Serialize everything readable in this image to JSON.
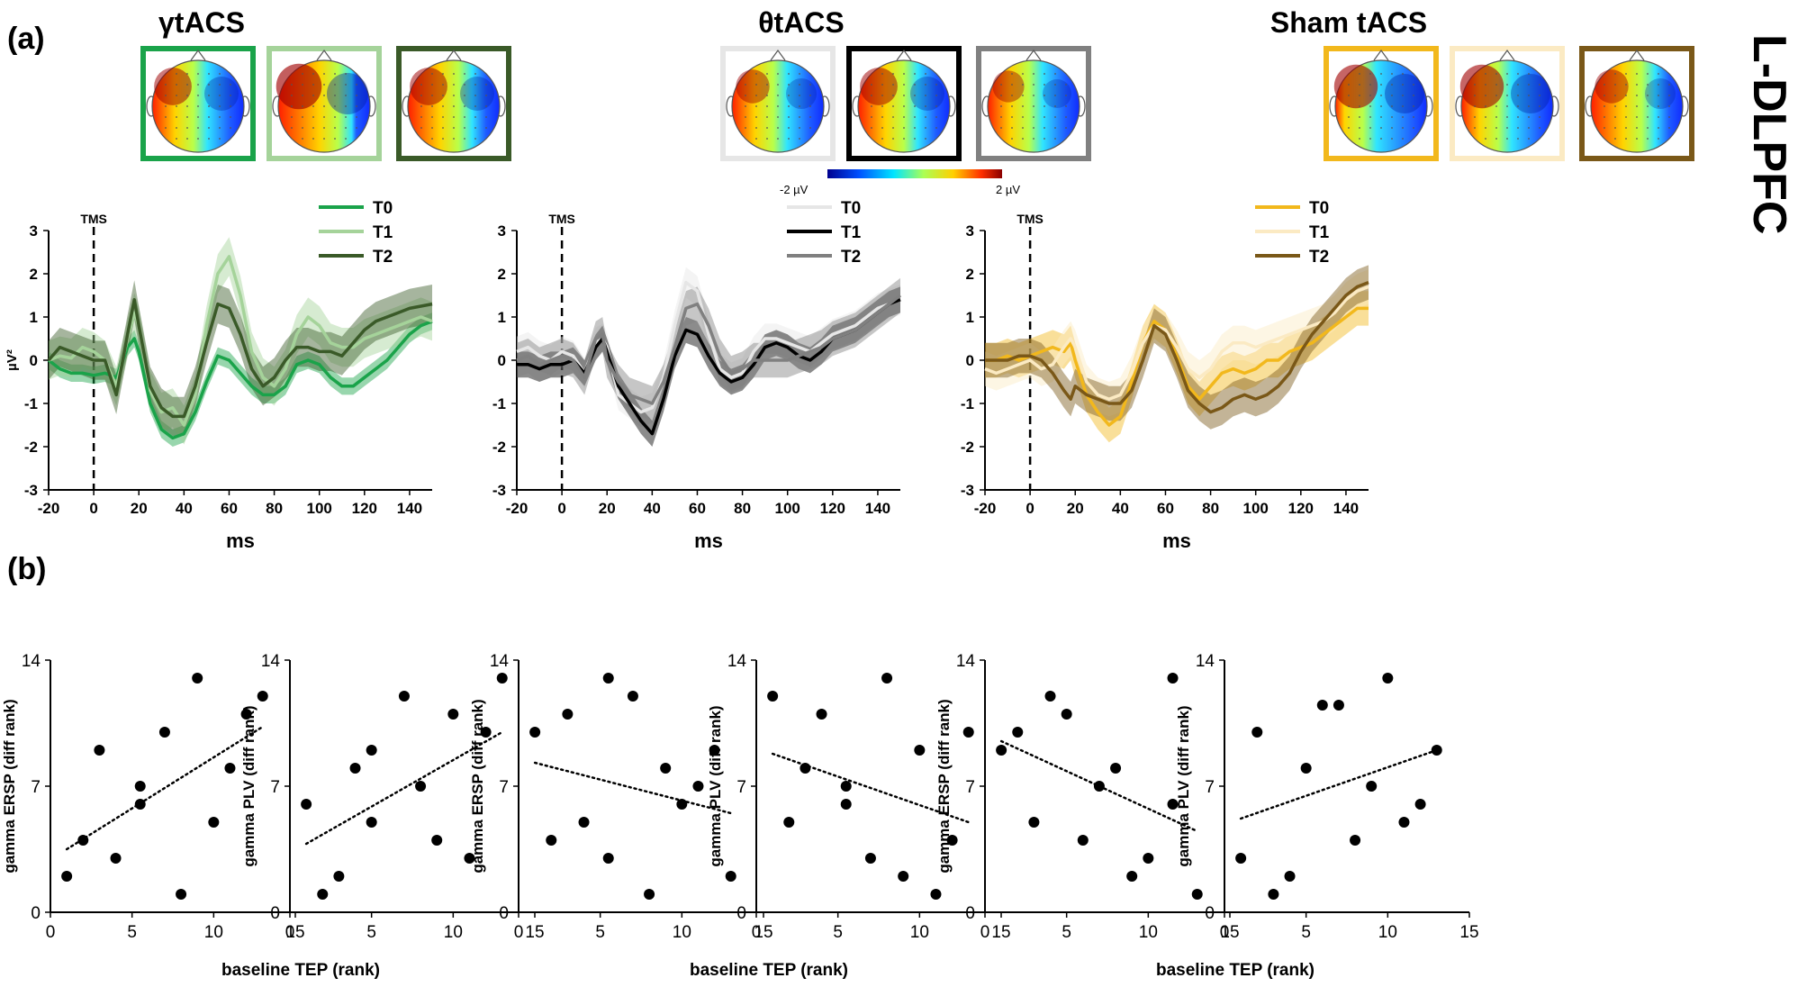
{
  "figure": {
    "panel_a_label": "(a)",
    "panel_b_label": "(b)",
    "side_label": "L-DLPFC",
    "colorbar": {
      "min_label": "-2 µV",
      "max_label": "2 µV"
    }
  },
  "colors": {
    "gamma": [
      "#1aa34a",
      "#a5d39a",
      "#3a5a28"
    ],
    "theta": [
      "#e6e6e6",
      "#000000",
      "#808080"
    ],
    "sham": [
      "#f2b81c",
      "#fbeac3",
      "#7a5818"
    ]
  },
  "chart_data": [
    {
      "type": "line",
      "title": "γtACS",
      "xlabel": "ms",
      "ylabel": "µV²",
      "xlim": [
        -20,
        150
      ],
      "ylim": [
        -3,
        3
      ],
      "xticks": [
        "-20",
        "0",
        "20",
        "40",
        "60",
        "80",
        "100",
        "120",
        "140"
      ],
      "yticks": [
        "-3",
        "-2",
        "-1",
        "0",
        "1",
        "2",
        "3"
      ],
      "marker_label": "TMS",
      "marker_x": 0,
      "legend": [
        "T0",
        "T1",
        "T2"
      ],
      "x": [
        -20,
        -15,
        -10,
        -5,
        0,
        5,
        10,
        15,
        18,
        20,
        25,
        30,
        35,
        40,
        45,
        50,
        55,
        60,
        65,
        70,
        75,
        80,
        85,
        90,
        95,
        100,
        105,
        110,
        115,
        120,
        125,
        130,
        135,
        140,
        145,
        150
      ],
      "series": [
        {
          "name": "T0",
          "values": [
            0,
            -0.2,
            -0.3,
            -0.3,
            -0.35,
            -0.3,
            -0.4,
            0.3,
            0.5,
            0.2,
            -1.0,
            -1.6,
            -1.8,
            -1.7,
            -1.2,
            -0.5,
            0.1,
            0.0,
            -0.3,
            -0.6,
            -0.8,
            -0.8,
            -0.6,
            -0.1,
            0.0,
            -0.1,
            -0.4,
            -0.6,
            -0.6,
            -0.4,
            -0.2,
            0.0,
            0.3,
            0.6,
            0.8,
            0.9
          ],
          "band": 0.2
        },
        {
          "name": "T1",
          "values": [
            0,
            0.1,
            0.05,
            0.3,
            0.2,
            0.0,
            -0.6,
            0.5,
            1.1,
            0.8,
            -0.7,
            -1.2,
            -1.1,
            -1.5,
            -0.8,
            0.8,
            2.0,
            2.4,
            1.5,
            0.2,
            -0.4,
            -0.6,
            -0.2,
            0.6,
            1.0,
            0.8,
            0.4,
            0.3,
            0.3,
            0.5,
            0.6,
            0.7,
            0.8,
            0.9,
            1.0,
            0.9
          ],
          "band": 0.45
        },
        {
          "name": "T2",
          "values": [
            0,
            0.3,
            0.2,
            0.1,
            0.0,
            0.0,
            -0.8,
            0.6,
            1.4,
            0.8,
            -0.6,
            -1.1,
            -1.3,
            -1.3,
            -0.6,
            0.4,
            1.3,
            1.2,
            0.6,
            -0.2,
            -0.6,
            -0.4,
            0.0,
            0.3,
            0.3,
            0.2,
            0.2,
            0.1,
            0.4,
            0.7,
            0.9,
            1.0,
            1.1,
            1.2,
            1.25,
            1.3
          ],
          "band": 0.45
        }
      ]
    },
    {
      "type": "line",
      "title": "θtACS",
      "xlabel": "ms",
      "ylabel": "",
      "xlim": [
        -20,
        150
      ],
      "ylim": [
        -3,
        3
      ],
      "xticks": [
        "-20",
        "0",
        "20",
        "40",
        "60",
        "80",
        "100",
        "120",
        "140"
      ],
      "yticks": [
        "-3",
        "-2",
        "-1",
        "0",
        "1",
        "2",
        "3"
      ],
      "marker_label": "TMS",
      "marker_x": 0,
      "legend": [
        "T0",
        "T1",
        "T2"
      ],
      "x": [
        -20,
        -15,
        -10,
        -5,
        0,
        5,
        10,
        15,
        18,
        20,
        25,
        30,
        35,
        40,
        45,
        50,
        55,
        60,
        65,
        70,
        75,
        80,
        85,
        90,
        95,
        100,
        105,
        110,
        115,
        120,
        125,
        130,
        135,
        140,
        145,
        150
      ],
      "series": [
        {
          "name": "T0",
          "values": [
            0.2,
            0.3,
            0.1,
            0.0,
            0.2,
            0.1,
            -0.3,
            0.4,
            0.5,
            0.3,
            -0.8,
            -1.0,
            -1.2,
            -1.1,
            -0.4,
            0.8,
            1.8,
            1.6,
            0.6,
            -0.2,
            -0.4,
            -0.3,
            0.2,
            0.5,
            0.5,
            0.4,
            0.3,
            0.2,
            0.4,
            0.6,
            0.7,
            0.8,
            1.0,
            1.2,
            1.3,
            1.4
          ],
          "band": 0.35
        },
        {
          "name": "T1",
          "values": [
            -0.1,
            -0.1,
            -0.2,
            -0.1,
            -0.1,
            0.0,
            -0.3,
            0.3,
            0.5,
            0.2,
            -0.6,
            -1.0,
            -1.4,
            -1.7,
            -0.9,
            0.1,
            0.7,
            0.6,
            0.1,
            -0.3,
            -0.5,
            -0.4,
            -0.1,
            0.3,
            0.4,
            0.3,
            0.1,
            0.0,
            0.2,
            0.5,
            0.6,
            0.7,
            0.9,
            1.1,
            1.3,
            1.4
          ],
          "band": 0.3
        },
        {
          "name": "T2",
          "values": [
            0.0,
            0.1,
            -0.1,
            0.0,
            0.1,
            0.0,
            -0.4,
            0.5,
            0.6,
            0.0,
            -0.5,
            -0.8,
            -0.9,
            -1.0,
            -0.5,
            0.3,
            1.2,
            1.3,
            0.8,
            0.1,
            -0.3,
            -0.2,
            0.0,
            0.0,
            0.0,
            0.0,
            0.1,
            0.2,
            0.3,
            0.5,
            0.6,
            0.7,
            0.9,
            1.1,
            1.3,
            1.5
          ],
          "band": 0.4
        }
      ]
    },
    {
      "type": "line",
      "title": "Sham tACS",
      "xlabel": "ms",
      "ylabel": "",
      "xlim": [
        -20,
        150
      ],
      "ylim": [
        -3,
        3
      ],
      "xticks": [
        "-20",
        "0",
        "20",
        "40",
        "60",
        "80",
        "100",
        "120",
        "140"
      ],
      "yticks": [
        "-3",
        "-2",
        "-1",
        "0",
        "1",
        "2",
        "3"
      ],
      "marker_label": "TMS",
      "marker_x": 0,
      "legend": [
        "T0",
        "T1",
        "T2"
      ],
      "x": [
        -20,
        -15,
        -10,
        -5,
        0,
        5,
        10,
        15,
        18,
        20,
        25,
        30,
        35,
        40,
        45,
        50,
        55,
        60,
        65,
        70,
        75,
        80,
        85,
        90,
        95,
        100,
        105,
        110,
        115,
        120,
        125,
        130,
        135,
        140,
        145,
        150
      ],
      "series": [
        {
          "name": "T0",
          "values": [
            0.0,
            0.0,
            0.1,
            0.0,
            0.1,
            0.2,
            0.3,
            0.2,
            0.4,
            0.0,
            -0.8,
            -1.2,
            -1.5,
            -1.3,
            -0.5,
            0.4,
            0.9,
            0.7,
            0.1,
            -0.6,
            -0.9,
            -0.6,
            -0.3,
            -0.2,
            -0.3,
            -0.2,
            0.0,
            0.0,
            0.2,
            0.3,
            0.4,
            0.6,
            0.8,
            1.0,
            1.2,
            1.2
          ],
          "band": 0.4
        },
        {
          "name": "T1",
          "values": [
            -0.2,
            -0.3,
            -0.2,
            -0.1,
            0.0,
            -0.2,
            -0.1,
            0.3,
            0.5,
            0.3,
            -0.5,
            -0.8,
            -0.9,
            -0.8,
            -0.3,
            0.4,
            0.8,
            0.7,
            0.3,
            -0.2,
            -0.4,
            -0.2,
            0.2,
            0.4,
            0.4,
            0.3,
            0.4,
            0.5,
            0.6,
            0.7,
            0.8,
            0.9,
            1.1,
            1.4,
            1.6,
            1.7
          ],
          "band": 0.4
        },
        {
          "name": "T2",
          "values": [
            0.0,
            0.0,
            0.0,
            0.1,
            0.1,
            0.0,
            -0.3,
            -0.7,
            -0.9,
            -0.6,
            -0.8,
            -0.9,
            -1.0,
            -1.0,
            -0.7,
            0.0,
            0.8,
            0.6,
            0.0,
            -0.7,
            -1.0,
            -1.2,
            -1.1,
            -0.9,
            -0.8,
            -0.9,
            -0.8,
            -0.6,
            -0.3,
            0.2,
            0.6,
            0.9,
            1.2,
            1.5,
            1.7,
            1.8
          ],
          "band": 0.4
        }
      ]
    },
    {
      "type": "scatter",
      "ylabel": "gamma ERSP (diff rank)",
      "xlabel": "baseline TEP (rank)",
      "xlim": [
        0,
        15
      ],
      "ylim": [
        0,
        14
      ],
      "xticks": [
        "0",
        "5",
        "10",
        "15"
      ],
      "yticks": [
        "0",
        "7",
        "14"
      ],
      "trend": [
        [
          1,
          3.5
        ],
        [
          13,
          10.3
        ]
      ],
      "points": [
        [
          1,
          2
        ],
        [
          2,
          4
        ],
        [
          3,
          9
        ],
        [
          4,
          3
        ],
        [
          5.5,
          7
        ],
        [
          5.5,
          6
        ],
        [
          7,
          10
        ],
        [
          8,
          1
        ],
        [
          9,
          13
        ],
        [
          10,
          5
        ],
        [
          11,
          8
        ],
        [
          12,
          11
        ],
        [
          13,
          12
        ]
      ]
    },
    {
      "type": "scatter",
      "ylabel": "gamma PLV (diff rank)",
      "xlabel": "",
      "xlim": [
        0,
        15
      ],
      "ylim": [
        0,
        14
      ],
      "xticks": [
        "0",
        "5",
        "10",
        "15"
      ],
      "yticks": [
        "0",
        "7",
        "14"
      ],
      "trend": [
        [
          1,
          3.8
        ],
        [
          13,
          10.0
        ]
      ],
      "points": [
        [
          1,
          6
        ],
        [
          2,
          1
        ],
        [
          3,
          2
        ],
        [
          4,
          8
        ],
        [
          5,
          5
        ],
        [
          5,
          9
        ],
        [
          7,
          12
        ],
        [
          8,
          7
        ],
        [
          9,
          4
        ],
        [
          10,
          11
        ],
        [
          11,
          3
        ],
        [
          12,
          10
        ],
        [
          13,
          13
        ]
      ]
    },
    {
      "type": "scatter",
      "ylabel": "gamma ERSP (diff rank)",
      "xlabel": "baseline TEP (rank)",
      "xlim": [
        0,
        15
      ],
      "ylim": [
        0,
        14
      ],
      "xticks": [
        "0",
        "5",
        "10",
        "15"
      ],
      "yticks": [
        "0",
        "7",
        "14"
      ],
      "trend": [
        [
          1,
          8.3
        ],
        [
          13,
          5.5
        ]
      ],
      "points": [
        [
          1,
          10
        ],
        [
          2,
          4
        ],
        [
          3,
          11
        ],
        [
          4,
          5
        ],
        [
          5.5,
          13
        ],
        [
          5.5,
          3
        ],
        [
          7,
          12
        ],
        [
          8,
          1
        ],
        [
          9,
          8
        ],
        [
          10,
          6
        ],
        [
          11,
          7
        ],
        [
          12,
          9
        ],
        [
          13,
          2
        ]
      ]
    },
    {
      "type": "scatter",
      "ylabel": "gamma PLV (diff rank)",
      "xlabel": "",
      "xlim": [
        0,
        15
      ],
      "ylim": [
        0,
        14
      ],
      "xticks": [
        "0",
        "5",
        "10",
        "15"
      ],
      "yticks": [
        "0",
        "7",
        "14"
      ],
      "trend": [
        [
          1,
          8.8
        ],
        [
          13,
          5.0
        ]
      ],
      "points": [
        [
          1,
          12
        ],
        [
          2,
          5
        ],
        [
          3,
          8
        ],
        [
          4,
          11
        ],
        [
          5.5,
          7
        ],
        [
          5.5,
          6
        ],
        [
          7,
          3
        ],
        [
          8,
          13
        ],
        [
          9,
          2
        ],
        [
          10,
          9
        ],
        [
          11,
          1
        ],
        [
          12,
          4
        ],
        [
          13,
          10
        ]
      ]
    },
    {
      "type": "scatter",
      "ylabel": "gamma ERSP (diff rank)",
      "xlabel": "baseline TEP (rank)",
      "xlim": [
        0,
        15
      ],
      "ylim": [
        0,
        14
      ],
      "xticks": [
        "0",
        "5",
        "10",
        "15"
      ],
      "yticks": [
        "0",
        "7",
        "14"
      ],
      "trend": [
        [
          1,
          9.5
        ],
        [
          13,
          4.5
        ]
      ],
      "points": [
        [
          1,
          9
        ],
        [
          2,
          10
        ],
        [
          3,
          5
        ],
        [
          4,
          12
        ],
        [
          5,
          11
        ],
        [
          6,
          4
        ],
        [
          7,
          7
        ],
        [
          8,
          8
        ],
        [
          9,
          2
        ],
        [
          10,
          3
        ],
        [
          11.5,
          13
        ],
        [
          11.5,
          6
        ],
        [
          13,
          1
        ]
      ]
    },
    {
      "type": "scatter",
      "ylabel": "gamma PLV (diff rank)",
      "xlabel": "",
      "xlim": [
        0,
        15
      ],
      "ylim": [
        0,
        14
      ],
      "xticks": [
        "0",
        "5",
        "10",
        "15"
      ],
      "yticks": [
        "0",
        "7",
        "14"
      ],
      "trend": [
        [
          1,
          5.2
        ],
        [
          13,
          9.0
        ]
      ],
      "points": [
        [
          1,
          3
        ],
        [
          2,
          10
        ],
        [
          3,
          1
        ],
        [
          4,
          2
        ],
        [
          5,
          8
        ],
        [
          6,
          11.5
        ],
        [
          7,
          11.5
        ],
        [
          8,
          4
        ],
        [
          9,
          7
        ],
        [
          10,
          13
        ],
        [
          11,
          5
        ],
        [
          12,
          6
        ],
        [
          13,
          9
        ]
      ]
    }
  ]
}
